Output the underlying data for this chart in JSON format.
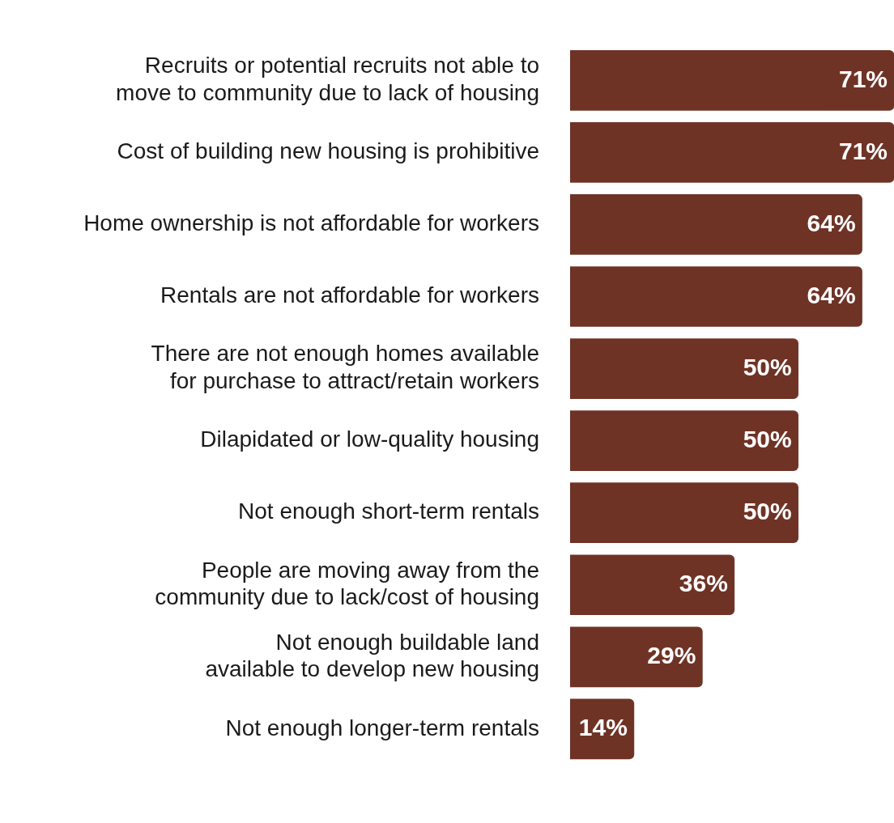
{
  "chart_data": {
    "type": "bar",
    "orientation": "horizontal",
    "categories": [
      "Recruits or potential recruits not able to move to community due to lack of housing",
      "Cost of building new housing is prohibitive",
      "Home ownership is not affordable for workers",
      "Rentals are not affordable for workers",
      "There are not enough homes available for purchase to attract/retain workers",
      "Dilapidated or low-quality housing",
      "Not enough short-term rentals",
      "People are moving away from the community due to lack/cost of housing",
      "Not enough buildable land available to develop new housing",
      "Not enough longer-term rentals"
    ],
    "values": [
      71,
      71,
      64,
      64,
      50,
      50,
      50,
      36,
      29,
      14
    ],
    "value_labels": [
      "71%",
      "71%",
      "64%",
      "64%",
      "50%",
      "50%",
      "50%",
      "36%",
      "29%",
      "14%"
    ],
    "color": "#6f3326",
    "grid": false,
    "legend": false
  }
}
